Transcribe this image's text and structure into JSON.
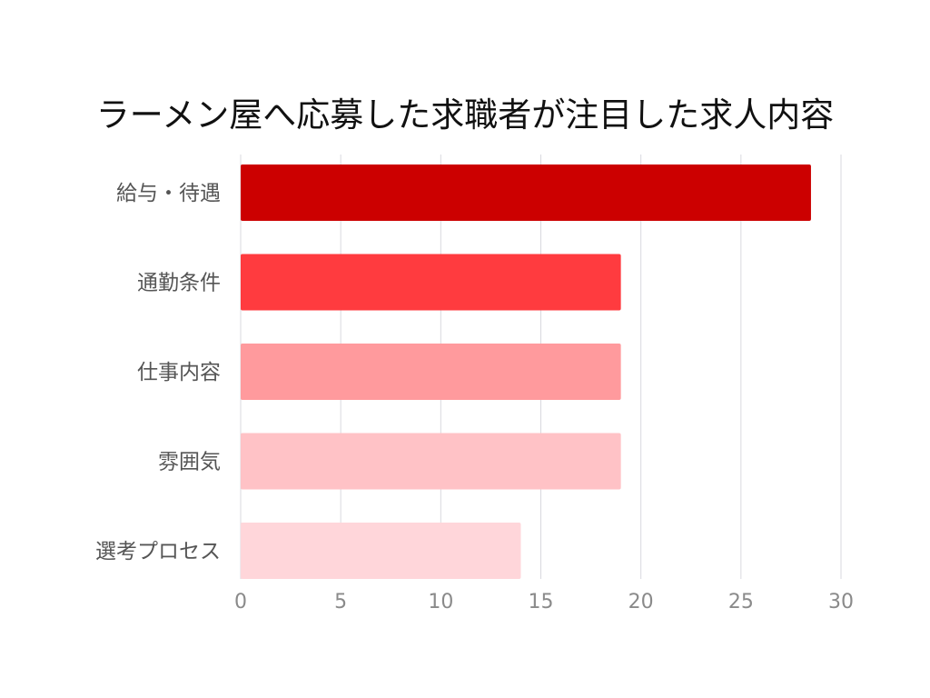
{
  "chart_data": {
    "type": "bar",
    "orientation": "horizontal",
    "title": "ラーメン屋へ応募した求職者が注目した求人内容",
    "xlabel": "",
    "ylabel": "",
    "categories": [
      "給与・待遇",
      "通勤条件",
      "仕事内容",
      "雰囲気",
      "選考プロセス"
    ],
    "values": [
      28.5,
      19,
      19,
      19,
      14
    ],
    "xlim": [
      0,
      30
    ],
    "xticks": [
      "0",
      "5",
      "10",
      "15",
      "20",
      "25",
      "30"
    ],
    "grid": "vertical",
    "bar_colors": [
      "#cc0000",
      "#ff3b3f",
      "#ff9a9d",
      "#ffc2c6",
      "#ffd6da"
    ]
  }
}
